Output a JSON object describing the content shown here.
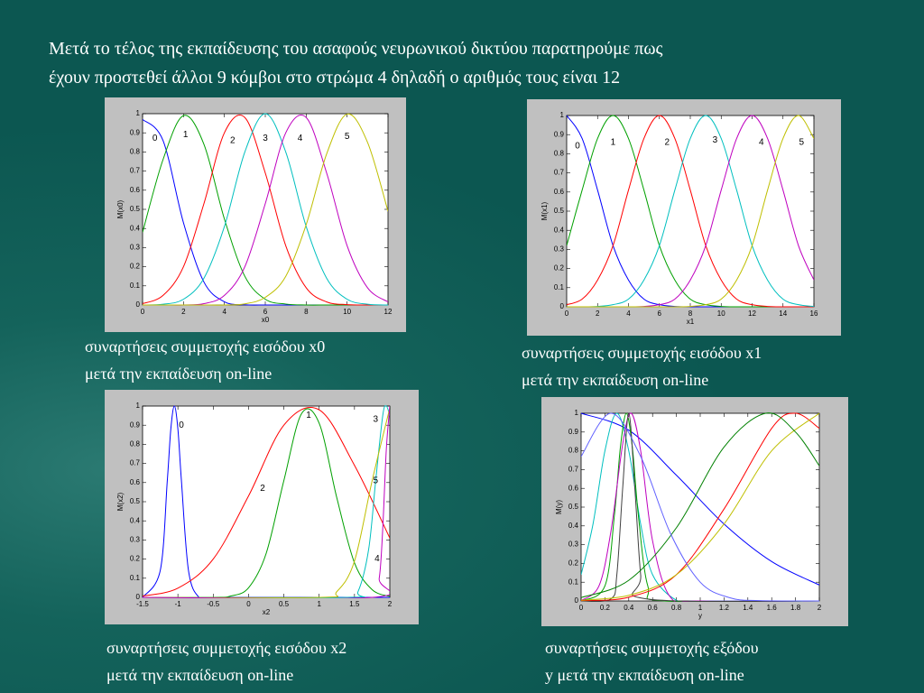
{
  "title": [
    "Μετά το τέλος της εκπαίδευσης του ασαφούς νευρωνικού δικτύου παρατηρούμε πως",
    "έχουν προστεθεί άλλοι 9 κόμβοι στο στρώμα 4 δηλαδή ο αριθμός τους είναι 12"
  ],
  "chart_data": [
    {
      "type": "line",
      "caption": [
        "συναρτήσεις  συμμετοχής εισόδου x0",
        "μετά την εκπαίδευση on-line"
      ],
      "ylabel": "M(x0)",
      "xlabel": "x0",
      "xlim": [
        0,
        12
      ],
      "xticks": [
        0,
        2,
        4,
        6,
        8,
        10,
        12
      ],
      "ylim": [
        0,
        1
      ],
      "yticks": [
        0,
        0.1,
        0.2,
        0.3,
        0.4,
        0.5,
        0.6,
        0.7,
        0.8,
        0.9,
        1
      ],
      "x": [
        0,
        1,
        2,
        3,
        4,
        5,
        6,
        7,
        8,
        9,
        10,
        11,
        12
      ],
      "series": [
        {
          "color": "#0000ff",
          "values": [
            0.97,
            0.86,
            0.43,
            0.12,
            0.017,
            0.001,
            0,
            0,
            0,
            0,
            0,
            0,
            0
          ]
        },
        {
          "color": "#00a000",
          "values": [
            0.38,
            0.76,
            0.99,
            0.84,
            0.45,
            0.15,
            0.03,
            0.005,
            0,
            0,
            0,
            0,
            0
          ]
        },
        {
          "color": "#ff0000",
          "values": [
            0.007,
            0.05,
            0.2,
            0.53,
            0.9,
            0.98,
            0.69,
            0.31,
            0.09,
            0.016,
            0.002,
            0,
            0
          ]
        },
        {
          "color": "#00bfbf",
          "values": [
            0,
            0.004,
            0.03,
            0.14,
            0.41,
            0.8,
            1,
            0.8,
            0.41,
            0.14,
            0.03,
            0.004,
            0
          ]
        },
        {
          "color": "#bf00bf",
          "values": [
            0,
            0,
            0,
            0.007,
            0.05,
            0.2,
            0.53,
            0.9,
            0.98,
            0.69,
            0.31,
            0.09,
            0.016
          ]
        },
        {
          "color": "#bfbf00",
          "values": [
            0,
            0,
            0,
            0,
            0,
            0.006,
            0.04,
            0.15,
            0.42,
            0.79,
            0.998,
            0.85,
            0.49
          ]
        }
      ],
      "annotations": [
        {
          "text": "0",
          "x": 0.6,
          "y": 0.87
        },
        {
          "text": "1",
          "x": 2.1,
          "y": 0.89
        },
        {
          "text": "2",
          "x": 4.4,
          "y": 0.86
        },
        {
          "text": "3",
          "x": 6,
          "y": 0.87
        },
        {
          "text": "4",
          "x": 7.7,
          "y": 0.87
        },
        {
          "text": "5",
          "x": 10,
          "y": 0.88
        }
      ]
    },
    {
      "type": "line",
      "caption": [
        "συναρτήσεις  συμμετοχής εισόδου x1",
        "μετά την εκπαίδευση on-line"
      ],
      "ylabel": "M(x1)",
      "xlabel": "x1",
      "xlim": [
        0,
        16
      ],
      "xticks": [
        0,
        2,
        4,
        6,
        8,
        10,
        12,
        14,
        16
      ],
      "ylim": [
        0,
        1
      ],
      "yticks": [
        0,
        0.1,
        0.2,
        0.3,
        0.4,
        0.5,
        0.6,
        0.7,
        0.8,
        0.9,
        1
      ],
      "x": [
        0,
        1,
        2,
        3,
        4,
        5,
        6,
        7,
        8,
        9,
        10,
        11,
        12,
        13,
        14,
        15,
        16
      ],
      "series": [
        {
          "color": "#0000ff",
          "values": [
            1,
            0.88,
            0.61,
            0.32,
            0.14,
            0.04,
            0.011,
            0.002,
            0,
            0,
            0,
            0,
            0,
            0,
            0,
            0,
            0
          ]
        },
        {
          "color": "#00a000",
          "values": [
            0.32,
            0.61,
            0.88,
            1,
            0.88,
            0.61,
            0.32,
            0.14,
            0.04,
            0.011,
            0.002,
            0,
            0,
            0,
            0,
            0,
            0
          ]
        },
        {
          "color": "#ff0000",
          "values": [
            0.011,
            0.04,
            0.14,
            0.32,
            0.61,
            0.88,
            1,
            0.88,
            0.61,
            0.32,
            0.14,
            0.04,
            0.011,
            0.002,
            0,
            0,
            0
          ]
        },
        {
          "color": "#00bfbf",
          "values": [
            0,
            0,
            0.002,
            0.011,
            0.04,
            0.14,
            0.32,
            0.61,
            0.88,
            1,
            0.88,
            0.61,
            0.32,
            0.14,
            0.04,
            0.011,
            0.002
          ]
        },
        {
          "color": "#bf00bf",
          "values": [
            0,
            0,
            0,
            0,
            0,
            0.002,
            0.011,
            0.04,
            0.14,
            0.32,
            0.61,
            0.88,
            1,
            0.88,
            0.61,
            0.32,
            0.14
          ]
        },
        {
          "color": "#bfbf00",
          "values": [
            0,
            0,
            0,
            0,
            0,
            0,
            0,
            0,
            0.002,
            0.011,
            0.04,
            0.14,
            0.32,
            0.61,
            0.88,
            1,
            0.88
          ]
        }
      ],
      "annotations": [
        {
          "text": "0",
          "x": 0.7,
          "y": 0.84
        },
        {
          "text": "1",
          "x": 3,
          "y": 0.86
        },
        {
          "text": "2",
          "x": 6.5,
          "y": 0.86
        },
        {
          "text": "3",
          "x": 9.6,
          "y": 0.87
        },
        {
          "text": "4",
          "x": 12.6,
          "y": 0.86
        },
        {
          "text": "5",
          "x": 15.2,
          "y": 0.86
        }
      ]
    },
    {
      "type": "line",
      "caption": [
        "συναρτήσεις  συμμετοχής εισόδου x2",
        "μετά την εκπαίδευση on-line"
      ],
      "ylabel": "M(x2)",
      "xlabel": "x2",
      "xlim": [
        -1.5,
        2
      ],
      "xticks": [
        -1.5,
        -1,
        -0.5,
        0,
        0.5,
        1,
        1.5,
        2
      ],
      "ylim": [
        0,
        1
      ],
      "yticks": [
        0,
        0.1,
        0.2,
        0.3,
        0.4,
        0.5,
        0.6,
        0.7,
        0.8,
        0.9,
        1
      ],
      "series": [
        {
          "color": "#0000ff",
          "x": [
            -1.5,
            -1.25,
            -1.15,
            -1.1,
            -1.05,
            -1,
            -0.95,
            -0.85,
            -0.7,
            -0.5,
            2
          ],
          "values": [
            0,
            0.14,
            0.61,
            0.88,
            1,
            0.88,
            0.61,
            0.14,
            0,
            0,
            0
          ]
        },
        {
          "color": "#ff0000",
          "x": [
            -1.5,
            -1,
            -0.5,
            0,
            0.5,
            1,
            1.5,
            2
          ],
          "values": [
            0.007,
            0.048,
            0.2,
            0.53,
            0.9,
            0.98,
            0.69,
            0.31
          ]
        },
        {
          "color": "#00a000",
          "x": [
            -1.5,
            -0.5,
            -0.25,
            0,
            0.25,
            0.5,
            0.75,
            1,
            1.25,
            1.5,
            1.75,
            2
          ],
          "values": [
            0,
            0,
            0.007,
            0.05,
            0.23,
            0.61,
            0.96,
            0.91,
            0.52,
            0.18,
            0.04,
            0.005
          ]
        },
        {
          "color": "#00bfbf",
          "x": [
            -1.5,
            1.4,
            1.55,
            1.7,
            1.8,
            1.9,
            1.95,
            2
          ],
          "values": [
            0,
            0,
            0.03,
            0.25,
            0.61,
            0.95,
            1,
            0.95
          ]
        },
        {
          "color": "#bfbf00",
          "x": [
            -1.5,
            1,
            1.25,
            1.5,
            1.75,
            2
          ],
          "values": [
            0,
            0,
            0.03,
            0.19,
            0.61,
            0.99
          ]
        },
        {
          "color": "#bf00bf",
          "x": [
            -1.5,
            1.75,
            1.85,
            1.9,
            1.95,
            2
          ],
          "values": [
            0,
            0,
            0.1,
            0.36,
            0.77,
            1
          ]
        }
      ],
      "annotations": [
        {
          "text": "0",
          "x": -0.95,
          "y": 0.9
        },
        {
          "text": "1",
          "x": 0.85,
          "y": 0.95
        },
        {
          "text": "2",
          "x": 0.2,
          "y": 0.57
        },
        {
          "text": "3",
          "x": 1.8,
          "y": 0.93
        },
        {
          "text": "5",
          "x": 1.8,
          "y": 0.61
        },
        {
          "text": "4",
          "x": 1.82,
          "y": 0.2
        }
      ]
    },
    {
      "type": "line",
      "caption": [
        "συναρτήσεις  συμμετοχής εξόδου",
        "y μετά την εκπαίδευση on-line"
      ],
      "ylabel": "M(y)",
      "xlabel": "y",
      "xlim": [
        0,
        2
      ],
      "xticks": [
        0,
        0.2,
        0.4,
        0.6,
        0.8,
        1,
        1.2,
        1.4,
        1.6,
        1.8,
        2
      ],
      "ylim": [
        0,
        1
      ],
      "yticks": [
        0,
        0.1,
        0.2,
        0.3,
        0.4,
        0.5,
        0.6,
        0.7,
        0.8,
        0.9,
        1
      ],
      "series": [
        {
          "color": "#0000ff",
          "x": [
            0,
            0.4,
            0.8,
            1.2,
            1.6,
            2
          ],
          "values": [
            1,
            0.91,
            0.67,
            0.41,
            0.21,
            0.085
          ]
        },
        {
          "color": "#00bfbf",
          "x": [
            0,
            0.1,
            0.2,
            0.3,
            0.4,
            0.5,
            0.6,
            0.8,
            1,
            2
          ],
          "values": [
            0.14,
            0.41,
            0.8,
            1,
            0.8,
            0.41,
            0.14,
            0.004,
            0,
            0
          ]
        },
        {
          "color": "#00a000",
          "x": [
            0,
            0.2,
            0.28,
            0.33,
            0.38,
            0.43,
            0.48,
            0.56,
            0.7,
            2
          ],
          "values": [
            0,
            0.08,
            0.46,
            0.82,
            1,
            0.82,
            0.46,
            0.08,
            0,
            0
          ]
        },
        {
          "color": "#bf00bf",
          "x": [
            0,
            0.15,
            0.25,
            0.35,
            0.42,
            0.5,
            0.6,
            0.75,
            1,
            2
          ],
          "values": [
            0.002,
            0.08,
            0.37,
            0.84,
            1,
            0.8,
            0.32,
            0.02,
            0,
            0
          ]
        },
        {
          "color": "#404040",
          "x": [
            0,
            0.25,
            0.3,
            0.35,
            0.4,
            0.45,
            0.5,
            0.55,
            2
          ],
          "values": [
            0,
            0.011,
            0.14,
            0.61,
            1,
            0.61,
            0.14,
            0.011,
            0
          ]
        },
        {
          "color": "#ff0000",
          "x": [
            0,
            0.4,
            0.8,
            1.2,
            1.6,
            1.8,
            2
          ],
          "values": [
            0.002,
            0.02,
            0.14,
            0.49,
            0.92,
            1,
            0.92
          ]
        },
        {
          "color": "#bfbf00",
          "x": [
            0,
            0.4,
            0.8,
            1.2,
            1.6,
            2
          ],
          "values": [
            0.004,
            0.03,
            0.14,
            0.41,
            0.8,
            1
          ]
        },
        {
          "color": "#008000",
          "x": [
            0,
            0.4,
            0.8,
            1.2,
            1.55,
            1.8,
            2
          ],
          "values": [
            0.018,
            0.11,
            0.39,
            0.82,
            1,
            0.9,
            0.72
          ]
        },
        {
          "color": "#6060ff",
          "x": [
            0,
            0.25,
            0.5,
            0.75,
            1,
            1.25,
            1.5,
            2
          ],
          "values": [
            0.77,
            1,
            0.77,
            0.36,
            0.1,
            0.017,
            0.002,
            0
          ]
        }
      ]
    }
  ]
}
